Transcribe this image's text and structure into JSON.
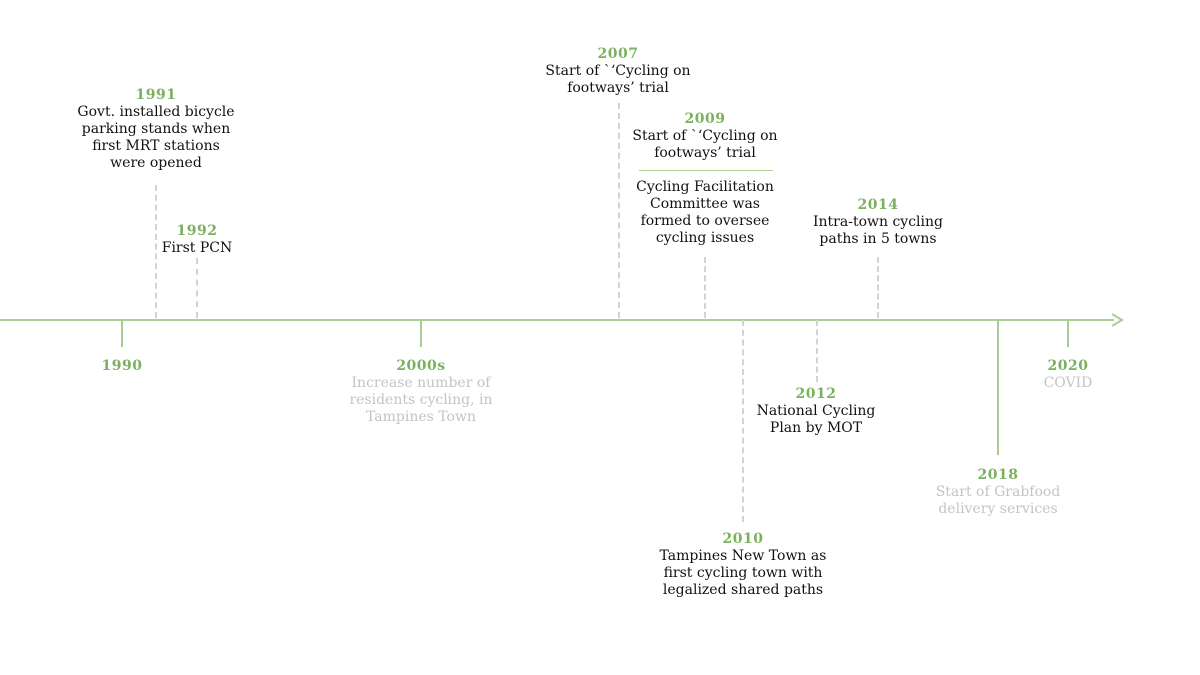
{
  "colors": {
    "accent": "#7bb15e",
    "line": "#a9cd95",
    "dash": "#d3d3d3",
    "text": "#111111",
    "muted_text": "#c4c4c4"
  },
  "events": {
    "e1990": {
      "year": "1990",
      "desc": ""
    },
    "e1991": {
      "year": "1991",
      "desc": "Govt. installed bicycle\nparking stands when\nfirst MRT stations\nwere opened"
    },
    "e1992": {
      "year": "1992",
      "desc": "First PCN"
    },
    "e2000s": {
      "year": "2000s",
      "desc": "Increase number of\nresidents cycling, in\nTampines Town"
    },
    "e2007": {
      "year": "2007",
      "desc": "Start of `‘Cycling on\nfootways’ trial"
    },
    "e2009": {
      "year": "2009",
      "desc": "Start of `‘Cycling on\nfootways’ trial",
      "desc2": "Cycling Facilitation\nCommittee was\nformed to oversee\ncycling issues"
    },
    "e2010": {
      "year": "2010",
      "desc": "Tampines New Town as\nfirst cycling town with\nlegalized shared paths"
    },
    "e2012": {
      "year": "2012",
      "desc": "National Cycling\nPlan by MOT"
    },
    "e2014": {
      "year": "2014",
      "desc": "Intra-town cycling\npaths in 5 towns"
    },
    "e2018": {
      "year": "2018",
      "desc": "Start of Grabfood\ndelivery services"
    },
    "e2020": {
      "year": "2020",
      "desc": "COVID"
    }
  }
}
